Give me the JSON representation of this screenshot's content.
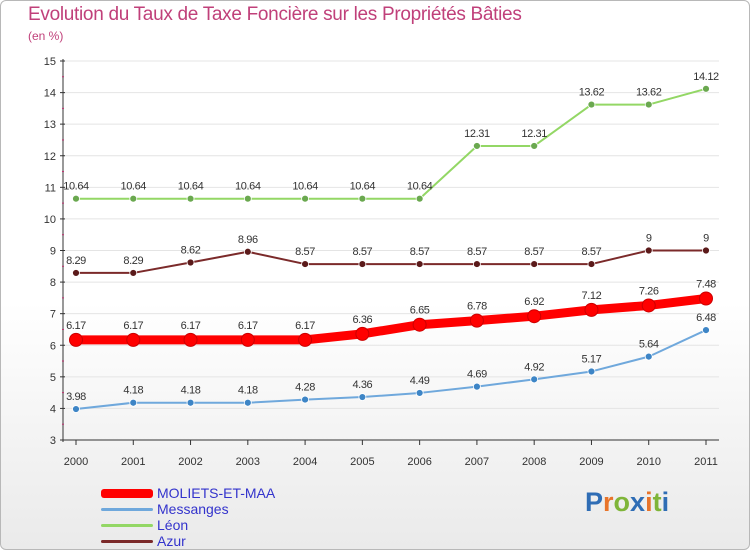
{
  "title": "Evolution du Taux de Taxe Foncière sur les Propriétés Bâties",
  "subtitle": "(en %)",
  "logo_text": "Proxiti",
  "colors": {
    "title": "#c0407a",
    "axis": "#333333",
    "tick_mark": "#c03070",
    "grid": "#e4e4e4"
  },
  "chart_data": {
    "type": "line",
    "title": "Evolution du Taux de Taxe Foncière sur les Propriétés Bâties",
    "ylabel": "(en %)",
    "xlabel": "",
    "x": [
      "2000",
      "2001",
      "2002",
      "2003",
      "2004",
      "2005",
      "2006",
      "2007",
      "2008",
      "2009",
      "2010",
      "2011"
    ],
    "ylim": [
      3,
      15
    ],
    "yticks": [
      "3",
      "4",
      "5",
      "6",
      "7",
      "8",
      "9",
      "10",
      "11",
      "12",
      "13",
      "14",
      "15"
    ],
    "grid": true,
    "legend_position": "bottom-left",
    "series": [
      {
        "name": "MOLIETS-ET-MAA",
        "color": "#ff0000",
        "legend_text_color": "#3333cc",
        "values": [
          6.17,
          6.17,
          6.17,
          6.17,
          6.17,
          6.36,
          6.65,
          6.78,
          6.92,
          7.12,
          7.26,
          7.48
        ],
        "labels": [
          "6.17",
          "6.17",
          "6.17",
          "6.17",
          "6.17",
          "6.36",
          "6.65",
          "6.78",
          "6.92",
          "7.12",
          "7.26",
          "7.48"
        ]
      },
      {
        "name": "Messanges",
        "color": "#6fa8dc",
        "marker_color": "#3d85c6",
        "legend_text_color": "#3333cc",
        "values": [
          3.98,
          4.18,
          4.18,
          4.18,
          4.28,
          4.36,
          4.49,
          4.69,
          4.92,
          5.17,
          5.64,
          6.48
        ],
        "labels": [
          "3.98",
          "4.18",
          "4.18",
          "4.18",
          "4.28",
          "4.36",
          "4.49",
          "4.69",
          "4.92",
          "5.17",
          "5.64",
          "6.48"
        ]
      },
      {
        "name": "Léon",
        "color": "#93d765",
        "marker_color": "#6aa84f",
        "legend_text_color": "#3333cc",
        "values": [
          10.64,
          10.64,
          10.64,
          10.64,
          10.64,
          10.64,
          10.64,
          12.31,
          12.31,
          13.62,
          13.62,
          14.12
        ],
        "labels": [
          "10.64",
          "10.64",
          "10.64",
          "10.64",
          "10.64",
          "10.64",
          "10.64",
          "12.31",
          "12.31",
          "13.62",
          "13.62",
          "14.12"
        ]
      },
      {
        "name": "Azur",
        "color": "#7b2a2a",
        "marker_color": "#5b1a1a",
        "legend_text_color": "#3333cc",
        "values": [
          8.29,
          8.29,
          8.62,
          8.96,
          8.57,
          8.57,
          8.57,
          8.57,
          8.57,
          8.57,
          9,
          9
        ],
        "labels": [
          "8.29",
          "8.29",
          "8.62",
          "8.96",
          "8.57",
          "8.57",
          "8.57",
          "8.57",
          "8.57",
          "8.57",
          "9",
          "9"
        ]
      }
    ]
  }
}
